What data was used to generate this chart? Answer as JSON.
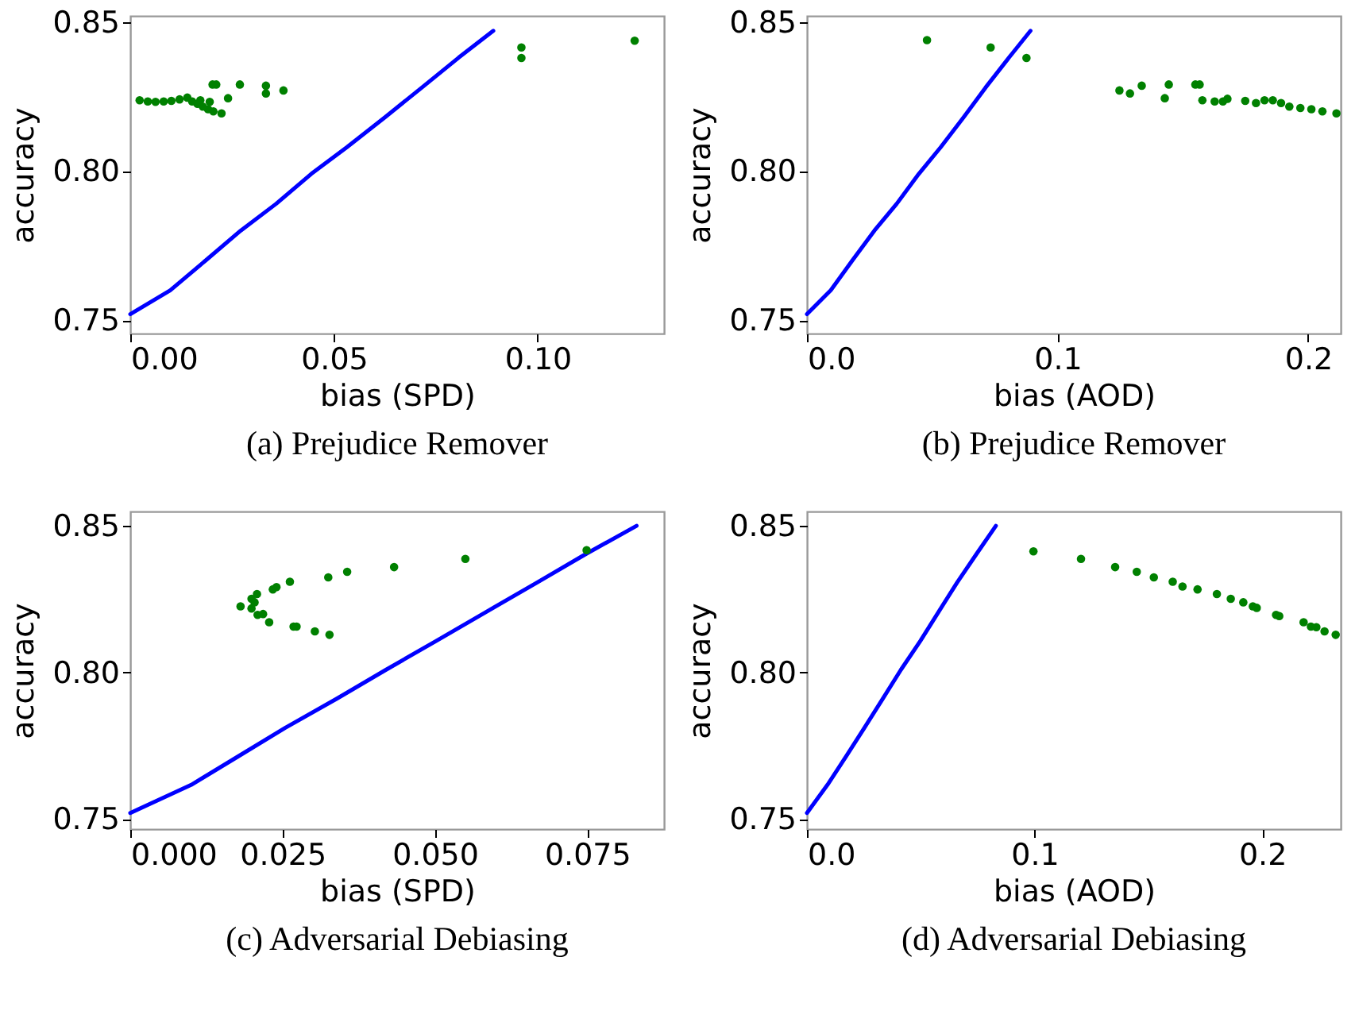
{
  "chart_data": [
    {
      "type": "scatter",
      "title": "(a) Prejudice Remover",
      "xlabel": "bias (SPD)",
      "ylabel": "accuracy",
      "xlim": [
        0,
        0.131
      ],
      "ylim": [
        0.7455,
        0.852
      ],
      "xticks": [
        {
          "value": 0,
          "label": "0.00"
        },
        {
          "value": 0.05,
          "label": "0.05"
        },
        {
          "value": 0.1,
          "label": "0.10"
        }
      ],
      "yticks": [
        {
          "value": 0.75,
          "label": "0.75"
        },
        {
          "value": 0.8,
          "label": "0.80"
        },
        {
          "value": 0.85,
          "label": "0.85"
        }
      ],
      "grid": false,
      "legend": false,
      "series": [
        {
          "type": "line",
          "color": "#0000ff",
          "x": [
            0,
            0.0098,
            0.0185,
            0.0271,
            0.0358,
            0.0444,
            0.0532,
            0.0625,
            0.0716,
            0.0806,
            0.0891
          ],
          "values": [
            0.752,
            0.76,
            0.77,
            0.78,
            0.789,
            0.799,
            0.808,
            0.818,
            0.828,
            0.838,
            0.847
          ]
        },
        {
          "type": "scatter",
          "color": "#008000",
          "marker": "circle",
          "x": [
            0.0023,
            0.0043,
            0.0062,
            0.0082,
            0.0101,
            0.0121,
            0.014,
            0.0152,
            0.0165,
            0.0178,
            0.0191,
            0.0204,
            0.0224,
            0.0172,
            0.0195,
            0.0202,
            0.0211,
            0.024,
            0.0269,
            0.0333,
            0.0333,
            0.0376,
            0.096,
            0.096,
            0.1238
          ],
          "values": [
            0.8237,
            0.8233,
            0.8232,
            0.8233,
            0.8235,
            0.824,
            0.8246,
            0.8233,
            0.8225,
            0.8216,
            0.8207,
            0.82,
            0.8193,
            0.8237,
            0.8232,
            0.829,
            0.829,
            0.8244,
            0.829,
            0.8286,
            0.826,
            0.827,
            0.8414,
            0.8379,
            0.8437
          ]
        }
      ]
    },
    {
      "type": "scatter",
      "title": "(b) Prejudice Remover",
      "xlabel": "bias (AOD)",
      "ylabel": "accuracy",
      "xlim": [
        0,
        0.213
      ],
      "ylim": [
        0.7455,
        0.852
      ],
      "xticks": [
        {
          "value": 0,
          "label": "0.0"
        },
        0.1,
        0.2
      ],
      "yticks": [
        {
          "value": 0.75,
          "label": "0.75"
        },
        {
          "value": 0.8,
          "label": "0.80"
        },
        {
          "value": 0.85,
          "label": "0.85"
        }
      ],
      "grid": false,
      "legend": false,
      "series": [
        {
          "type": "line",
          "color": "#0000ff",
          "x": [
            0,
            0.0095,
            0.0181,
            0.0269,
            0.0358,
            0.0446,
            0.0534,
            0.0625,
            0.0713,
            0.0806,
            0.0892
          ],
          "values": [
            0.752,
            0.76,
            0.77,
            0.78,
            0.789,
            0.799,
            0.808,
            0.818,
            0.828,
            0.838,
            0.847
          ]
        },
        {
          "type": "scatter",
          "color": "#008000",
          "marker": "circle",
          "x": [
            0.0479,
            0.0733,
            0.0876,
            0.1247,
            0.1289,
            0.1336,
            0.1428,
            0.1444,
            0.155,
            0.1567,
            0.1578,
            0.1627,
            0.166,
            0.1678,
            0.1749,
            0.1792,
            0.1826,
            0.1859,
            0.1892,
            0.1925,
            0.1969,
            0.2013,
            0.2057,
            0.2113
          ],
          "values": [
            0.8439,
            0.8414,
            0.8379,
            0.827,
            0.826,
            0.8286,
            0.8244,
            0.829,
            0.829,
            0.829,
            0.8237,
            0.8233,
            0.8233,
            0.8242,
            0.8235,
            0.8228,
            0.8237,
            0.8237,
            0.8228,
            0.8216,
            0.8211,
            0.8207,
            0.82,
            0.8193
          ]
        }
      ]
    },
    {
      "type": "scatter",
      "title": "(c) Adversarial Debiasing",
      "xlabel": "bias (SPD)",
      "ylabel": "accuracy",
      "xlim": [
        0,
        0.0876
      ],
      "ylim": [
        0.7465,
        0.8549
      ],
      "xticks": [
        {
          "value": 0,
          "label": "0.000"
        },
        0.025,
        {
          "value": 0.05,
          "label": "0.050"
        },
        0.075
      ],
      "yticks": [
        {
          "value": 0.75,
          "label": "0.75"
        },
        {
          "value": 0.8,
          "label": "0.80"
        },
        {
          "value": 0.85,
          "label": "0.85"
        }
      ],
      "grid": false,
      "legend": false,
      "series": [
        {
          "type": "line",
          "color": "#0000ff",
          "x": [
            0,
            0.01,
            0.0177,
            0.0254,
            0.0339,
            0.042,
            0.0502,
            0.0584,
            0.0668,
            0.0748,
            0.0831
          ],
          "values": [
            0.752,
            0.7616,
            0.7713,
            0.781,
            0.791,
            0.8009,
            0.8107,
            0.8206,
            0.8307,
            0.8404,
            0.85
          ]
        },
        {
          "type": "scatter",
          "color": "#008000",
          "marker": "circle",
          "x": [
            0.0181,
            0.0199,
            0.0199,
            0.0204,
            0.0208,
            0.0209,
            0.0218,
            0.0228,
            0.0234,
            0.024,
            0.0262,
            0.0268,
            0.0273,
            0.0303,
            0.0325,
            0.0327,
            0.0356,
            0.0433,
            0.055,
            0.0749
          ],
          "values": [
            0.8225,
            0.8251,
            0.8218,
            0.8239,
            0.8267,
            0.8196,
            0.8199,
            0.8171,
            0.8283,
            0.8291,
            0.8309,
            0.8156,
            0.8156,
            0.814,
            0.8324,
            0.8128,
            0.8343,
            0.8359,
            0.8387,
            0.8417
          ]
        }
      ]
    },
    {
      "type": "scatter",
      "title": "(d) Adversarial Debiasing",
      "xlabel": "bias (AOD)",
      "ylabel": "accuracy",
      "xlim": [
        0,
        0.2345
      ],
      "ylim": [
        0.7465,
        0.8549
      ],
      "xticks": [
        {
          "value": 0,
          "label": "0.0"
        },
        0.1,
        0.2
      ],
      "yticks": [
        {
          "value": 0.75,
          "label": "0.75"
        },
        {
          "value": 0.8,
          "label": "0.80"
        },
        {
          "value": 0.85,
          "label": "0.85"
        }
      ],
      "grid": false,
      "legend": false,
      "series": [
        {
          "type": "line",
          "color": "#0000ff",
          "x": [
            0,
            0.009,
            0.0172,
            0.0252,
            0.0333,
            0.0413,
            0.0498,
            0.0578,
            0.066,
            0.0745,
            0.083
          ],
          "values": [
            0.752,
            0.7616,
            0.7713,
            0.781,
            0.791,
            0.8009,
            0.8107,
            0.8206,
            0.8307,
            0.8404,
            0.85
          ]
        },
        {
          "type": "scatter",
          "color": "#008000",
          "marker": "circle",
          "x": [
            0.0995,
            0.1204,
            0.1354,
            0.1449,
            0.1524,
            0.1607,
            0.165,
            0.1716,
            0.1801,
            0.1862,
            0.1917,
            0.1959,
            0.1976,
            0.2061,
            0.2075,
            0.2182,
            0.2214,
            0.2238,
            0.2274,
            0.2323
          ],
          "values": [
            0.8413,
            0.8387,
            0.8359,
            0.8343,
            0.8324,
            0.8309,
            0.8293,
            0.8283,
            0.8267,
            0.8251,
            0.8239,
            0.8225,
            0.822,
            0.8196,
            0.8192,
            0.8171,
            0.8156,
            0.8154,
            0.814,
            0.8128
          ]
        }
      ]
    }
  ]
}
